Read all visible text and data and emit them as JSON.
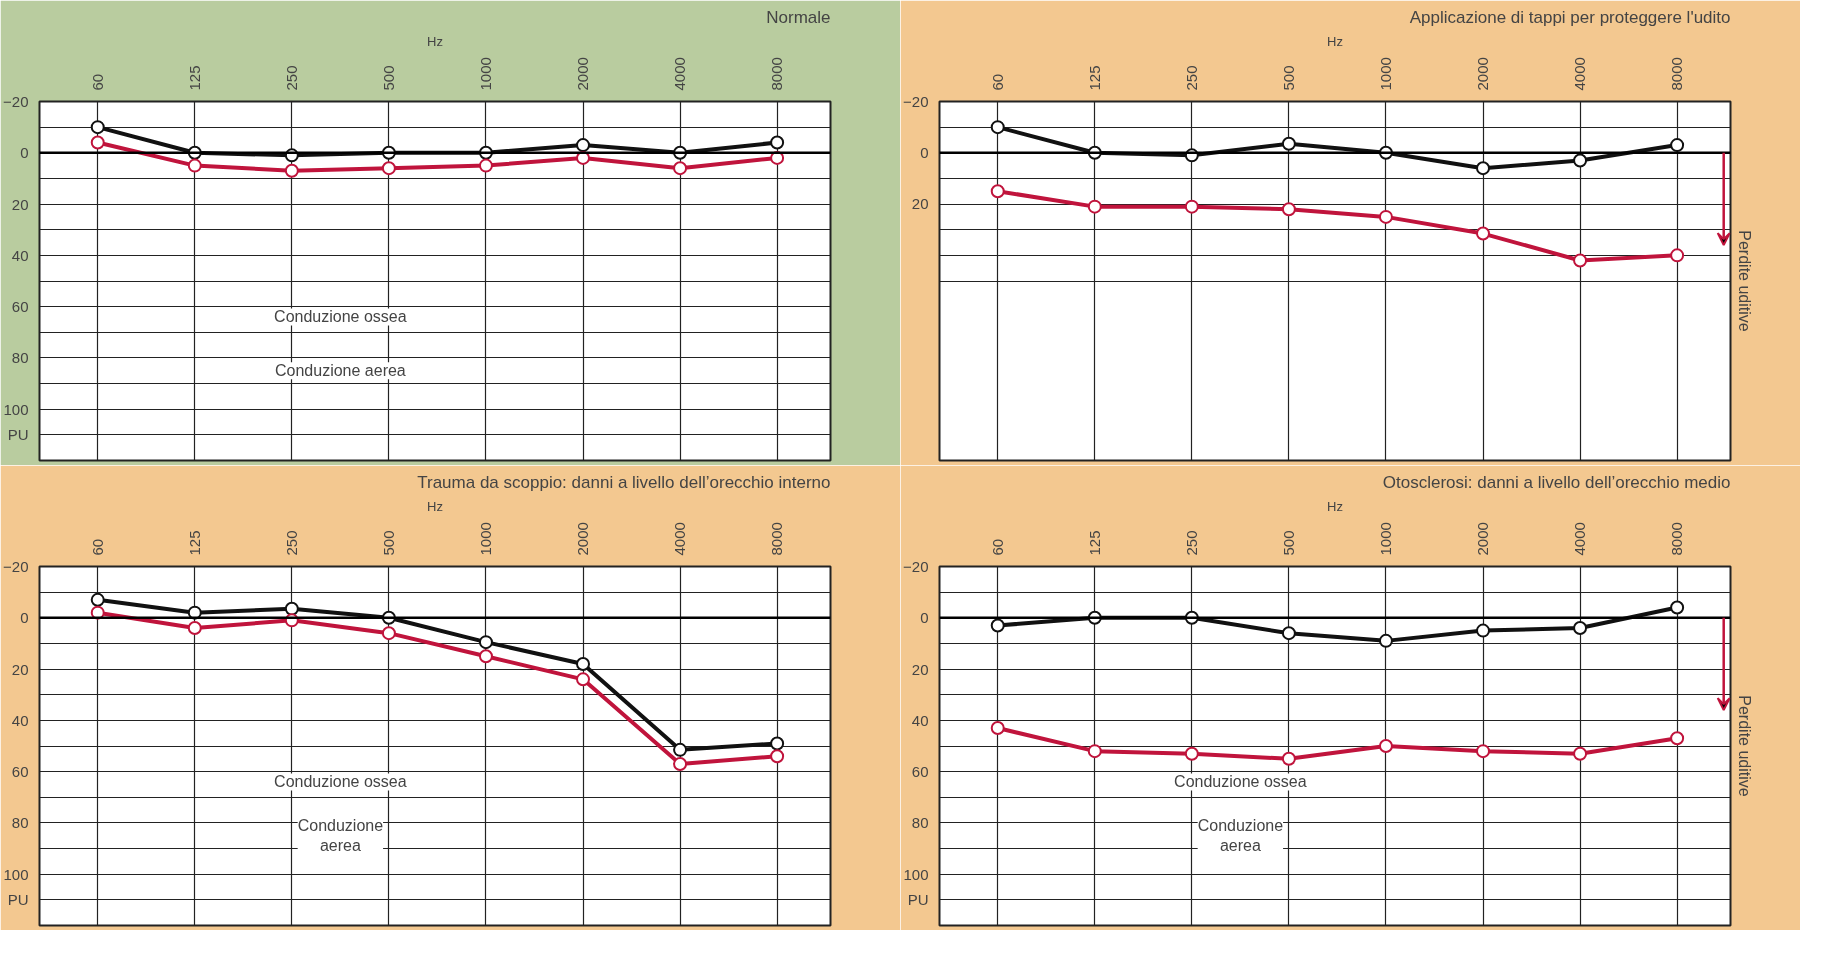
{
  "chart_data": [
    {
      "type": "line",
      "title": "Normale",
      "xlabel": "Hz",
      "categories": [
        "60",
        "125",
        "250",
        "500",
        "1000",
        "2000",
        "4000",
        "8000"
      ],
      "series": [
        {
          "color": "#111111",
          "values": [
            -10,
            0,
            1,
            0,
            0,
            -3,
            0,
            -4
          ]
        },
        {
          "color": "#c0143c",
          "values": [
            -4,
            5,
            7,
            6,
            5,
            2,
            6,
            2
          ]
        }
      ],
      "ylim": [
        120,
        -20
      ],
      "yticks": [
        -20,
        {
          "value": -10,
          "label": null
        },
        0,
        {
          "value": 10,
          "label": null
        },
        20,
        {
          "value": 30,
          "label": null
        },
        40,
        {
          "value": 50,
          "label": null
        },
        60,
        {
          "value": 70,
          "label": null
        },
        80,
        {
          "value": 90,
          "label": null
        },
        100,
        {
          "value": 110,
          "label": "PU"
        }
      ],
      "ref_lines": [
        {
          "axis": "y",
          "value": 0,
          "label": null
        }
      ],
      "annotations": [
        "Conduzione ossea",
        "Conduzione aerea"
      ],
      "grid": true,
      "marker": "circle",
      "line_style": "solid"
    },
    {
      "type": "line",
      "title": "Applicazione di tappi per proteggere l'udito",
      "xlabel": "Hz",
      "y2label": "Perdite uditive",
      "categories": [
        "60",
        "125",
        "250",
        "500",
        "1000",
        "2000",
        "4000",
        "8000"
      ],
      "series": [
        {
          "color": "#111111",
          "values": [
            -10,
            0,
            1,
            -3.5,
            0,
            6,
            3,
            -3
          ]
        },
        {
          "color": "#c0143c",
          "values": [
            15,
            21,
            21,
            22,
            25,
            31.5,
            42,
            40
          ]
        }
      ],
      "ylim": [
        120,
        -20
      ],
      "yticks": [
        -20,
        {
          "value": -10,
          "label": null
        },
        0,
        {
          "value": 10,
          "label": null
        },
        20,
        {
          "value": 30,
          "label": null
        },
        {
          "value": 40,
          "label": null
        },
        {
          "value": 50,
          "label": null
        }
      ],
      "ref_lines": [
        {
          "axis": "y",
          "value": 0,
          "label": null
        }
      ],
      "grid": true,
      "marker": "circle",
      "line_style": "solid"
    },
    {
      "type": "line",
      "title": "Trauma da scoppio: danni a livello dell’orecchio interno",
      "xlabel": "Hz",
      "categories": [
        "60",
        "125",
        "250",
        "500",
        "1000",
        "2000",
        "4000",
        "8000"
      ],
      "series": [
        {
          "color": "#111111",
          "values": [
            -7,
            -2,
            -3.5,
            0,
            9.5,
            18,
            51.5,
            49
          ]
        },
        {
          "color": "#c0143c",
          "values": [
            -2,
            4,
            1,
            6,
            15,
            24,
            57,
            54
          ]
        }
      ],
      "ylim": [
        120,
        -20
      ],
      "yticks": [
        -20,
        {
          "value": -10,
          "label": null
        },
        0,
        {
          "value": 10,
          "label": null
        },
        20,
        {
          "value": 30,
          "label": null
        },
        40,
        {
          "value": 50,
          "label": null
        },
        60,
        {
          "value": 70,
          "label": null
        },
        80,
        {
          "value": 90,
          "label": null
        },
        100,
        {
          "value": 110,
          "label": "PU"
        }
      ],
      "ref_lines": [
        {
          "axis": "y",
          "value": 0,
          "label": null
        }
      ],
      "annotations": [
        "Conduzione ossea",
        "Conduzione\naerea"
      ],
      "grid": true,
      "marker": "circle",
      "line_style": "solid"
    },
    {
      "type": "line",
      "title": "Otosclerosi: danni a livello dell’orecchio medio",
      "xlabel": "Hz",
      "y2label": "Perdite uditive",
      "categories": [
        "60",
        "125",
        "250",
        "500",
        "1000",
        "2000",
        "4000",
        "8000"
      ],
      "series": [
        {
          "color": "#111111",
          "values": [
            3,
            0,
            0,
            6,
            9,
            5,
            4,
            -4
          ]
        },
        {
          "color": "#c0143c",
          "values": [
            43,
            52,
            53,
            55,
            50,
            52,
            53,
            47
          ]
        }
      ],
      "ylim": [
        120,
        -20
      ],
      "yticks": [
        -20,
        {
          "value": -10,
          "label": null
        },
        0,
        {
          "value": 10,
          "label": null
        },
        20,
        {
          "value": 30,
          "label": null
        },
        40,
        {
          "value": 50,
          "label": null
        },
        60,
        {
          "value": 70,
          "label": null
        },
        80,
        {
          "value": 90,
          "label": null
        },
        100,
        {
          "value": 110,
          "label": "PU"
        }
      ],
      "ref_lines": [
        {
          "axis": "y",
          "value": 0,
          "label": null
        }
      ],
      "annotations": [
        "Conduzione ossea",
        "Conduzione\naerea"
      ],
      "grid": true,
      "marker": "circle",
      "line_style": "solid"
    }
  ]
}
